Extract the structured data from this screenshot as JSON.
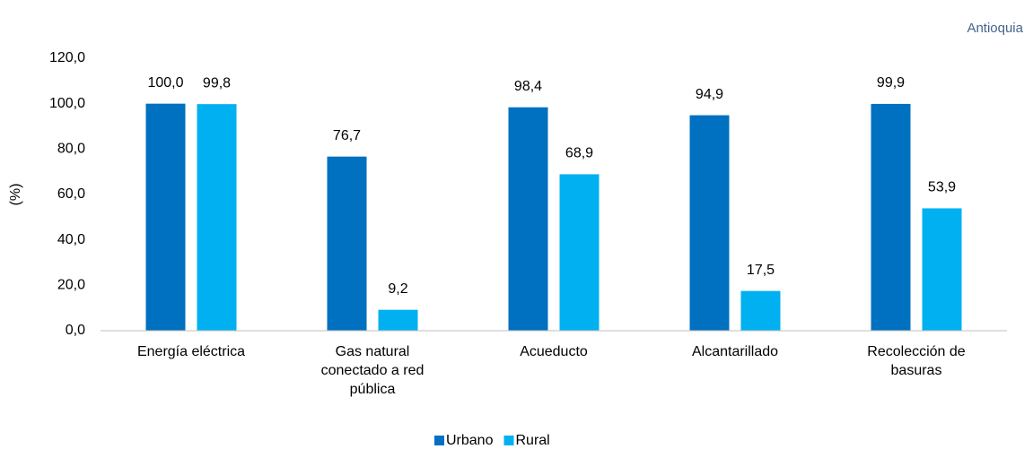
{
  "chart_data": {
    "type": "bar",
    "annotation": "Antioquia",
    "y_label": "(%)",
    "categories": [
      "Energía eléctrica",
      "Gas natural\nconectado a red\npública",
      "Acueducto",
      "Alcantarillado",
      "Recolección de\nbasuras"
    ],
    "series": [
      {
        "name": "Urbano",
        "color": "#0070c0",
        "values": [
          100.0,
          76.7,
          98.4,
          94.9,
          99.9
        ],
        "value_labels": [
          "100,0",
          "76,7",
          "98,4",
          "94,9",
          "99,9"
        ]
      },
      {
        "name": "Rural",
        "color": "#00b0f0",
        "values": [
          99.8,
          9.2,
          68.9,
          17.5,
          53.9
        ],
        "value_labels": [
          "99,8",
          "9,2",
          "68,9",
          "17,5",
          "53,9"
        ]
      }
    ],
    "ylim": [
      0,
      120
    ],
    "yticks": [
      {
        "value": 0,
        "label": "0,0"
      },
      {
        "value": 20,
        "label": "20,0"
      },
      {
        "value": 40,
        "label": "40,0"
      },
      {
        "value": 60,
        "label": "60,0"
      },
      {
        "value": 80,
        "label": "80,0"
      },
      {
        "value": 100,
        "label": "100,0"
      },
      {
        "value": 120,
        "label": "120,0"
      }
    ],
    "grid": false,
    "legend": "bottom"
  }
}
